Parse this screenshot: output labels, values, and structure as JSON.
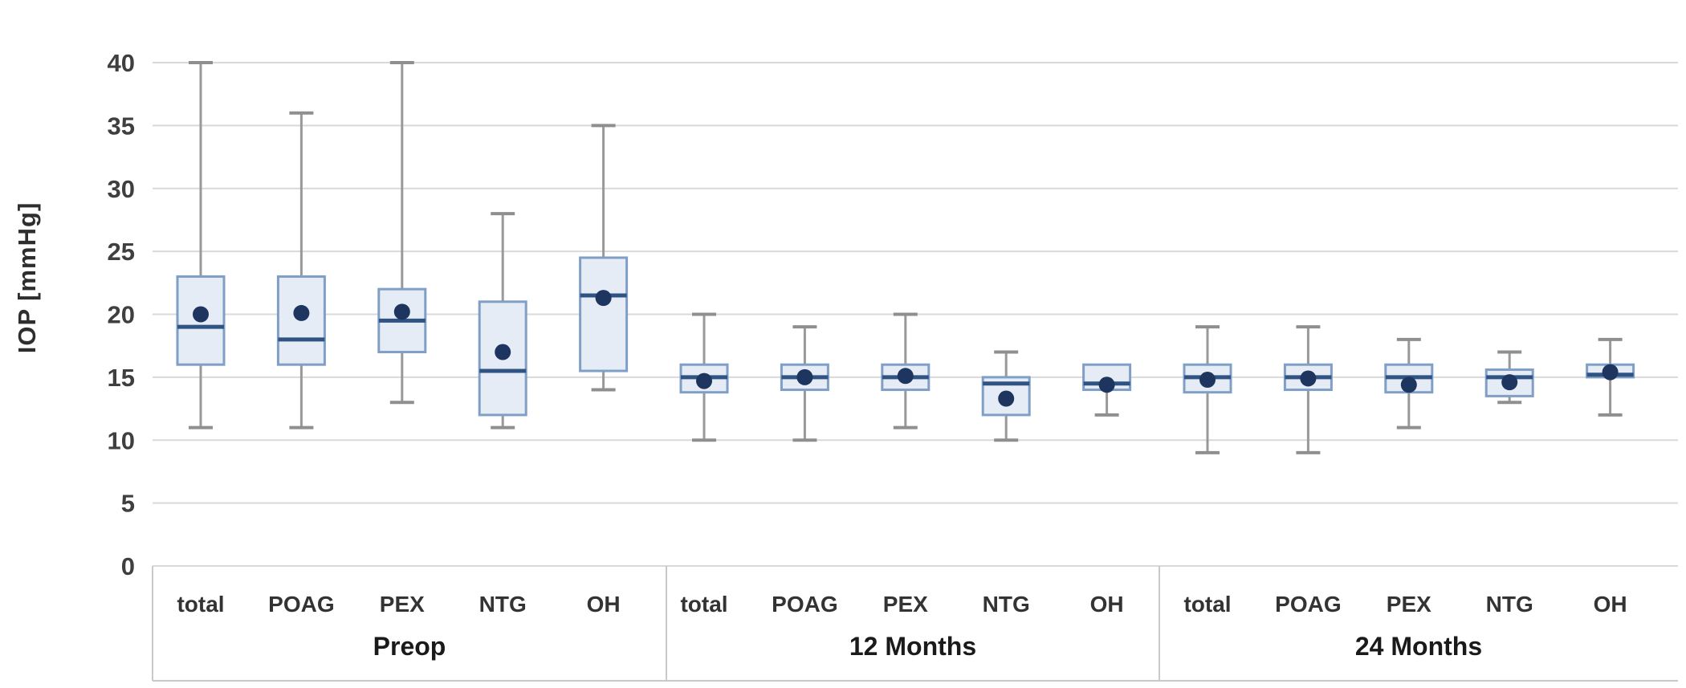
{
  "chart_data": {
    "type": "box",
    "title": "",
    "ylabel": "IOP [mmHg]",
    "xlabel": "",
    "ylim": [
      0,
      40
    ],
    "yticks": [
      0,
      5,
      10,
      15,
      20,
      25,
      30,
      35,
      40
    ],
    "grid": "horizontal",
    "legend": "none",
    "categories": [
      "total",
      "POAG",
      "PEX",
      "NTG",
      "OH"
    ],
    "groups": [
      {
        "label": "Preop",
        "boxes": [
          {
            "category": "total",
            "min": 11,
            "q1": 16,
            "median": 19,
            "q3": 23,
            "max": 40,
            "mean": 20.0
          },
          {
            "category": "POAG",
            "min": 11,
            "q1": 16,
            "median": 18,
            "q3": 23,
            "max": 36,
            "mean": 20.1
          },
          {
            "category": "PEX",
            "min": 13,
            "q1": 17,
            "median": 19.5,
            "q3": 22,
            "max": 40,
            "mean": 20.2
          },
          {
            "category": "NTG",
            "min": 11,
            "q1": 12,
            "median": 15.5,
            "q3": 21,
            "max": 28,
            "mean": 17.0
          },
          {
            "category": "OH",
            "min": 14,
            "q1": 15.5,
            "median": 21.5,
            "q3": 24.5,
            "max": 35,
            "mean": 21.3
          }
        ]
      },
      {
        "label": "12 Months",
        "boxes": [
          {
            "category": "total",
            "min": 10,
            "q1": 13.8,
            "median": 15,
            "q3": 16,
            "max": 20,
            "mean": 14.7
          },
          {
            "category": "POAG",
            "min": 10,
            "q1": 14,
            "median": 15,
            "q3": 16,
            "max": 19,
            "mean": 15.0
          },
          {
            "category": "PEX",
            "min": 11,
            "q1": 14,
            "median": 15,
            "q3": 16,
            "max": 20,
            "mean": 15.1
          },
          {
            "category": "NTG",
            "min": 10,
            "q1": 12,
            "median": 14.5,
            "q3": 15,
            "max": 17,
            "mean": 13.3
          },
          {
            "category": "OH",
            "min": 12,
            "q1": 14,
            "median": 14.5,
            "q3": 16,
            "max": 16,
            "mean": 14.4
          }
        ]
      },
      {
        "label": "24 Months",
        "boxes": [
          {
            "category": "total",
            "min": 9,
            "q1": 13.8,
            "median": 15,
            "q3": 16,
            "max": 19,
            "mean": 14.8
          },
          {
            "category": "POAG",
            "min": 9,
            "q1": 14,
            "median": 15,
            "q3": 16,
            "max": 19,
            "mean": 14.9
          },
          {
            "category": "PEX",
            "min": 11,
            "q1": 13.8,
            "median": 15,
            "q3": 16,
            "max": 18,
            "mean": 14.4
          },
          {
            "category": "NTG",
            "min": 13,
            "q1": 13.5,
            "median": 15,
            "q3": 15.6,
            "max": 17,
            "mean": 14.6
          },
          {
            "category": "OH",
            "min": 12,
            "q1": 15,
            "median": 15.2,
            "q3": 16,
            "max": 18,
            "mean": 15.4
          }
        ]
      }
    ],
    "colors": {
      "box_fill": "#e6ecf6",
      "box_border": "#7f9fc6",
      "median_line": "#2f5483",
      "mean_dot": "#1e3560",
      "whisker": "#999999",
      "whisker_cap": "#8f8f8f",
      "gridline": "#d9d9d9",
      "band_border": "#c9c9c9",
      "tick_text": "#3f3f3f"
    }
  }
}
